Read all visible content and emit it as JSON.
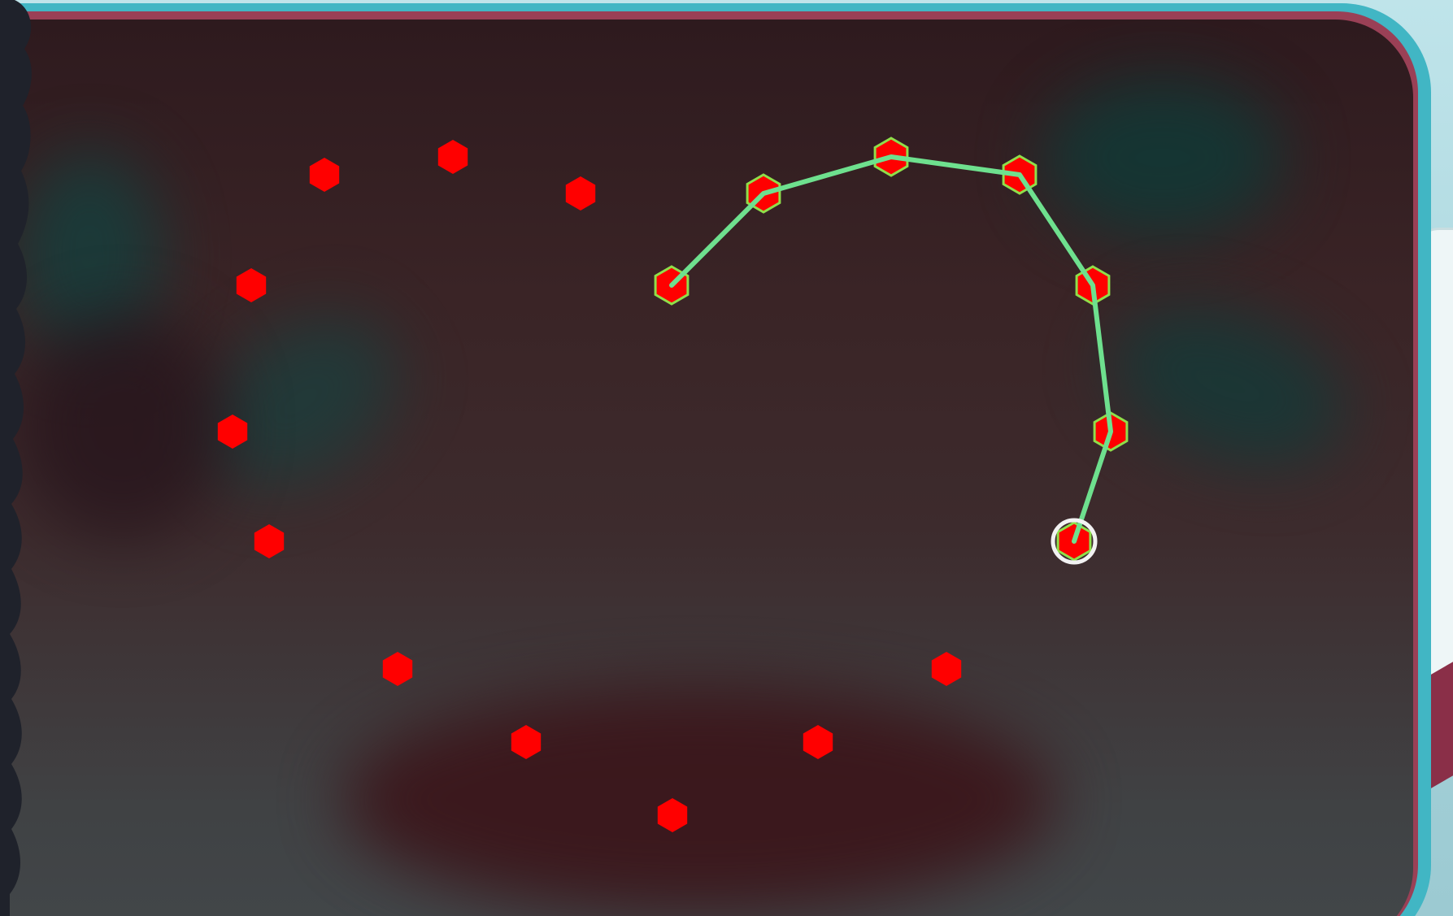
{
  "game": {
    "colors": {
      "node_fill": "#ff0000",
      "node_active_stroke": "#8fdf4a",
      "path_line": "#6ee08e",
      "cursor_ring": "#f2f2f2",
      "frame_teal": "#41b6c4",
      "frame_rose": "#9a4056"
    },
    "node_shape": "hexagon",
    "nodes": [
      {
        "id": "n1",
        "visited": false
      },
      {
        "id": "n2",
        "visited": false
      },
      {
        "id": "n3",
        "visited": false
      },
      {
        "id": "n4",
        "visited": true
      },
      {
        "id": "n5",
        "visited": true
      },
      {
        "id": "n6",
        "visited": true
      },
      {
        "id": "n7",
        "visited": true
      },
      {
        "id": "n8",
        "visited": true
      },
      {
        "id": "n9",
        "visited": true
      },
      {
        "id": "n10",
        "visited": true
      },
      {
        "id": "n11",
        "visited": false
      },
      {
        "id": "n12",
        "visited": false
      },
      {
        "id": "n13",
        "visited": false
      },
      {
        "id": "n14",
        "visited": false
      },
      {
        "id": "n15",
        "visited": false
      },
      {
        "id": "n16",
        "visited": false
      },
      {
        "id": "n17",
        "visited": false
      },
      {
        "id": "n18",
        "visited": false
      }
    ],
    "path": [
      "n4",
      "n5",
      "n6",
      "n7",
      "n8",
      "n9",
      "n10"
    ],
    "cursor_node": "n10",
    "icons": {
      "node": "red-hexagon-icon",
      "cursor": "selection-ring-icon"
    }
  }
}
